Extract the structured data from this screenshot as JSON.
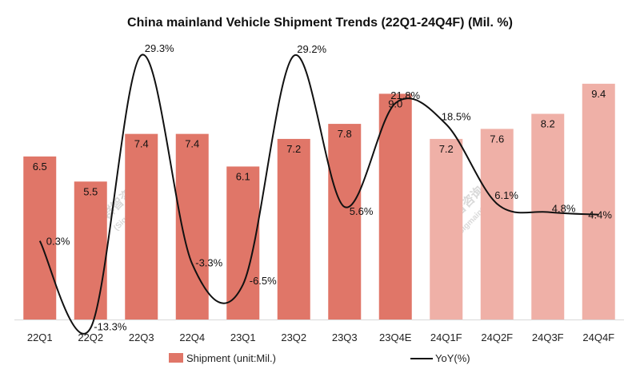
{
  "chart_data": {
    "type": "bar",
    "title": "China mainland Vehicle Shipment Trends (22Q1-24Q4F) (Mil. %)",
    "categories": [
      "22Q1",
      "22Q2",
      "22Q3",
      "22Q4",
      "23Q1",
      "23Q2",
      "23Q3",
      "23Q4E",
      "24Q1F",
      "24Q2F",
      "24Q3F",
      "24Q4F"
    ],
    "series": [
      {
        "name": "Shipment (unit:Mil.)",
        "type": "bar",
        "values": [
          6.5,
          5.5,
          7.4,
          7.4,
          6.1,
          7.2,
          7.8,
          9.0,
          7.2,
          7.6,
          8.2,
          9.4
        ],
        "labels": [
          "6.5",
          "5.5",
          "7.4",
          "7.4",
          "6.1",
          "7.2",
          "7.8",
          "9.0",
          "7.2",
          "7.6",
          "8.2",
          "9.4"
        ],
        "forecast": [
          false,
          false,
          false,
          false,
          false,
          false,
          false,
          false,
          true,
          true,
          true,
          true
        ]
      },
      {
        "name": "YoY(%)",
        "type": "line",
        "values": [
          0.3,
          -13.3,
          29.3,
          -3.3,
          -6.5,
          29.2,
          5.6,
          21.8,
          18.5,
          6.1,
          4.8,
          4.4
        ],
        "labels": [
          "0.3%",
          "-13.3%",
          "29.3%",
          "-3.3%",
          "-6.5%",
          "29.2%",
          "5.6%",
          "21.8%",
          "18.5%",
          "6.1%",
          "4.8%",
          "4.4%"
        ]
      }
    ],
    "bar_ylim": [
      0,
      10
    ],
    "line_ylim": [
      -20,
      35
    ],
    "colors": {
      "bar": "#e07668",
      "bar_forecast": "#efb0a7",
      "line": "#111111",
      "axis": "#d9d9d9"
    },
    "legend": {
      "position": "bottom",
      "bar_label": "Shipment (unit:Mil.)",
      "line_label": "YoY(%)"
    },
    "watermark": {
      "cn": "群智咨询",
      "en": "(Sigmaintell)"
    }
  }
}
